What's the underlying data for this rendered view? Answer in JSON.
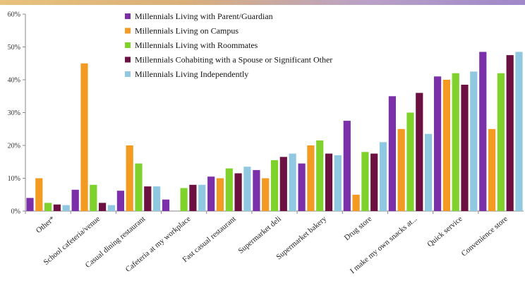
{
  "colors": {
    "top_band": "#d8b27a"
  },
  "chart_data": {
    "type": "bar",
    "title": "",
    "xlabel": "",
    "ylabel": "",
    "ylim": [
      0,
      60
    ],
    "y_ticks": [
      "0%",
      "10%",
      "20%",
      "30%",
      "40%",
      "50%",
      "60%"
    ],
    "y_tick_values": [
      0,
      10,
      20,
      30,
      40,
      50,
      60
    ],
    "grid": false,
    "legend_position": "top-center",
    "categories": [
      "Other*",
      "School cafeteria/venue",
      "Casual dining restaurant",
      "Cafeteria at my workplace",
      "Fast casual restaurant",
      "Supermarket deli",
      "Supermarket bakery",
      "Drug store",
      "I make my own snacks at...",
      "Quick service",
      "Convenience store"
    ],
    "series": [
      {
        "name": "Millennials Living with Parent/Guardian",
        "color": "#7b2fa8",
        "values": [
          4,
          6.5,
          6.2,
          3.5,
          10.5,
          12.5,
          14.5,
          27.5,
          35,
          41,
          48.5
        ]
      },
      {
        "name": "Millennials Living on Campus",
        "color": "#f39a22",
        "values": [
          10,
          45,
          20,
          0,
          10,
          10,
          20,
          5,
          25,
          40,
          25
        ]
      },
      {
        "name": "Millennials Living with Roommates",
        "color": "#7fd12c",
        "values": [
          2.5,
          8,
          14.5,
          7,
          13,
          15.5,
          21.5,
          18,
          30,
          42,
          42
        ]
      },
      {
        "name": "Millennials Cohabiting with a Spouse or Significant Other",
        "color": "#6b1040",
        "values": [
          2,
          2.5,
          7.5,
          8,
          11.5,
          16.5,
          17.5,
          17.5,
          36,
          38.5,
          47.5
        ]
      },
      {
        "name": "Millennials Living Independently",
        "color": "#8fc8e0",
        "values": [
          1.8,
          1.8,
          7.5,
          8,
          13.5,
          17.5,
          17,
          21,
          23.5,
          42.5,
          48.5
        ]
      }
    ]
  }
}
